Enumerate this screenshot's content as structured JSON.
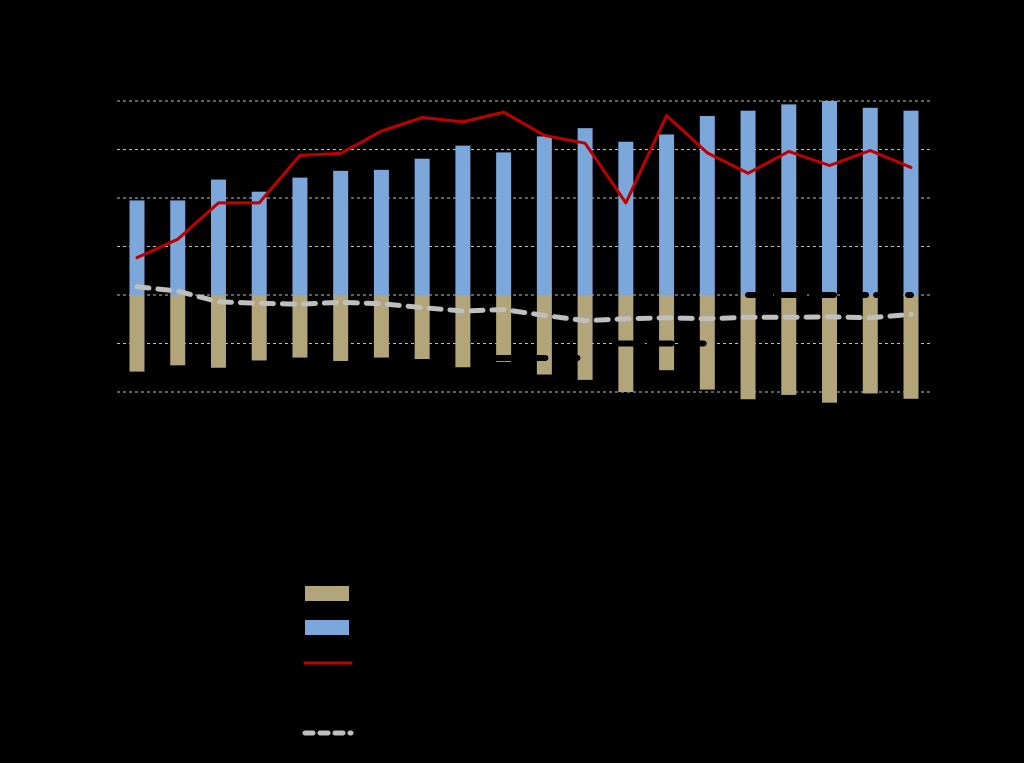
{
  "chart_data": {
    "type": "bar",
    "bar_mode": "stacked",
    "categories": [
      "",
      "",
      "",
      "",
      "",
      "",
      "",
      "",
      "",
      "",
      "",
      "",
      "",
      "",
      "",
      "",
      "",
      "",
      "",
      ""
    ],
    "ylim": [
      -2.0,
      4.0
    ],
    "yticks": [
      -2,
      -1,
      0,
      1,
      2,
      3,
      4
    ],
    "grid": true,
    "series": [
      {
        "kind": "bar",
        "color": "#7BA7DB",
        "values": [
          1.95,
          1.95,
          2.38,
          2.13,
          2.42,
          2.56,
          2.58,
          2.81,
          3.08,
          2.94,
          3.27,
          3.44,
          3.16,
          3.31,
          3.69,
          3.8,
          3.93,
          4.0,
          3.86,
          3.8
        ]
      },
      {
        "kind": "bar",
        "color": "#B3A57A",
        "values": [
          -1.58,
          -1.45,
          -1.5,
          -1.35,
          -1.29,
          -1.36,
          -1.29,
          -1.32,
          -1.49,
          -1.38,
          -1.64,
          -1.75,
          -2.0,
          -1.55,
          -1.95,
          -2.15,
          -2.06,
          -2.22,
          -2.03,
          -2.14
        ]
      },
      {
        "kind": "line",
        "color": "#C00000",
        "values": [
          0.77,
          1.15,
          1.9,
          1.9,
          2.88,
          2.92,
          3.38,
          3.66,
          3.57,
          3.77,
          3.29,
          3.13,
          1.9,
          3.7,
          2.93,
          2.51,
          2.96,
          2.67,
          2.98,
          2.63
        ]
      },
      {
        "kind": "line",
        "style": "dashed",
        "color": "#BFBFBF",
        "values": [
          0.17,
          0.08,
          -0.14,
          -0.17,
          -0.19,
          -0.15,
          -0.18,
          -0.26,
          -0.33,
          -0.3,
          -0.42,
          -0.53,
          -0.49,
          -0.47,
          -0.49,
          -0.46,
          -0.46,
          -0.45,
          -0.47,
          -0.4
        ]
      }
    ],
    "annotations": [
      {
        "kind": "dash-segment",
        "color": "#000000",
        "y": -1.3,
        "x_from": 8.7,
        "x_to": 11.0
      },
      {
        "kind": "dash-segment",
        "color": "#000000",
        "y": -1.0,
        "x_from": 11.8,
        "x_to": 14.0
      },
      {
        "kind": "dash-segment",
        "color": "#000000",
        "y": 0.0,
        "x_from": 15.0,
        "x_to": 19.0
      }
    ],
    "legend": {
      "position": "bottom",
      "entries": [
        {
          "marker": "bar",
          "color": "#B3A57A",
          "label": ""
        },
        {
          "marker": "bar",
          "color": "#7BA7DB",
          "label": ""
        },
        {
          "marker": "line",
          "color": "#C00000",
          "label": ""
        },
        {
          "marker": "dashed-line",
          "color": "#BFBFBF",
          "label": ""
        }
      ]
    }
  }
}
